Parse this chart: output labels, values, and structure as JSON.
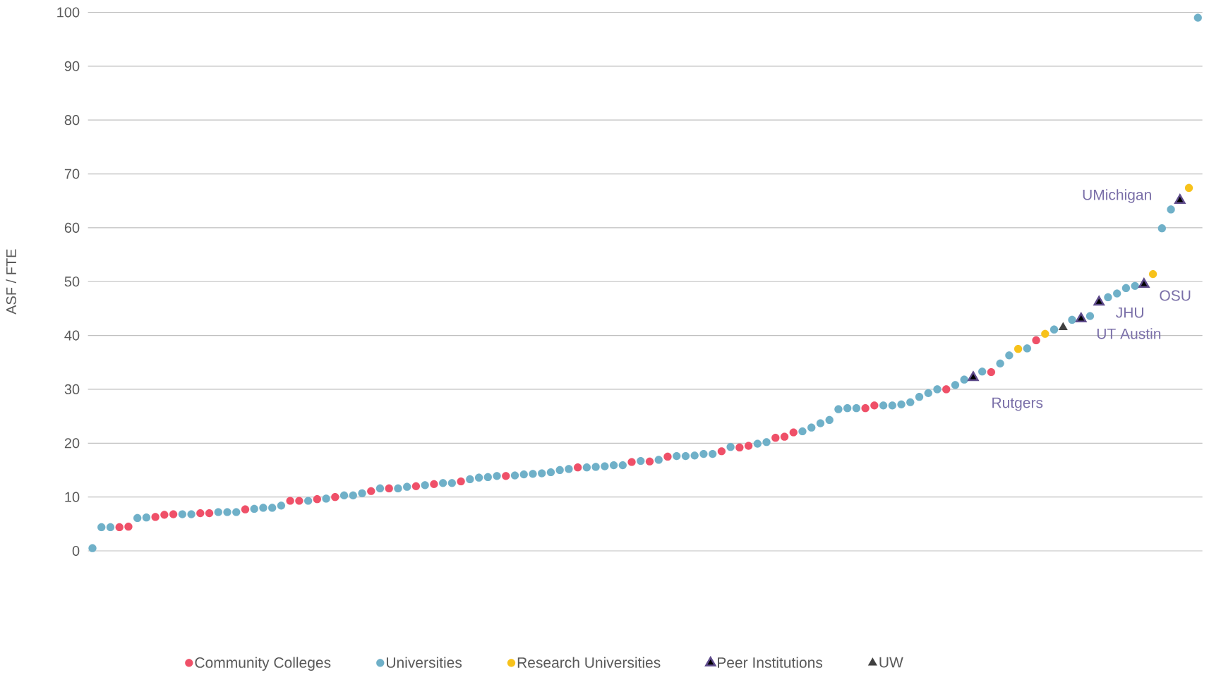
{
  "chart_data": {
    "type": "scatter",
    "ylabel": "ASF / FTE",
    "categories": [
      null,
      null,
      null,
      null,
      null,
      null,
      null,
      null,
      null,
      null,
      null,
      null,
      null,
      null,
      null,
      null,
      null,
      null,
      null,
      null,
      null,
      null,
      null,
      null,
      null,
      null,
      null,
      null,
      null,
      null,
      null,
      null,
      null,
      null,
      null,
      null,
      null,
      null,
      null,
      null,
      null,
      null,
      null,
      null,
      null,
      null,
      null,
      null,
      null,
      null,
      null,
      null,
      null,
      null,
      null,
      null,
      null,
      null,
      null,
      null,
      null,
      null,
      null,
      null,
      null,
      null,
      null,
      null,
      null,
      null,
      null,
      null,
      null,
      null,
      null,
      null,
      null,
      null,
      null,
      null,
      null,
      null,
      null,
      null,
      null,
      null,
      null,
      null,
      null,
      null,
      null,
      null,
      null,
      null,
      null,
      null,
      null,
      null,
      null,
      null,
      null,
      null,
      null,
      null,
      null,
      null,
      null,
      null,
      null,
      null,
      null,
      null,
      null,
      null,
      null,
      null,
      null,
      null,
      null,
      null,
      null,
      null,
      null,
      null
    ],
    "series": [
      {
        "name": "Community Colleges",
        "color": "#ef5068",
        "marker": "circle",
        "values": [
          null,
          null,
          null,
          4.4,
          4.5,
          null,
          null,
          6.3,
          6.7,
          6.8,
          null,
          null,
          7.0,
          7.0,
          null,
          null,
          null,
          7.7,
          null,
          null,
          null,
          null,
          9.3,
          9.3,
          null,
          9.6,
          null,
          10.0,
          null,
          null,
          null,
          11.1,
          null,
          11.6,
          null,
          null,
          12.0,
          null,
          12.4,
          null,
          null,
          12.9,
          null,
          null,
          null,
          null,
          13.9,
          null,
          null,
          null,
          null,
          null,
          null,
          null,
          15.5,
          null,
          null,
          null,
          null,
          null,
          16.5,
          null,
          16.6,
          null,
          17.5,
          null,
          null,
          null,
          null,
          null,
          18.5,
          null,
          19.2,
          19.5,
          null,
          null,
          21.0,
          21.2,
          22.0,
          null,
          null,
          null,
          null,
          null,
          null,
          null,
          26.5,
          27.0,
          null,
          null,
          null,
          null,
          null,
          null,
          null,
          30.0,
          null,
          null,
          null,
          null,
          33.2,
          null,
          null,
          null,
          null,
          39.1,
          null,
          null,
          null,
          null,
          null,
          null,
          null,
          null,
          null,
          null,
          null,
          null,
          null,
          null,
          null,
          null,
          null,
          null
        ]
      },
      {
        "name": "Universities",
        "color": "#6fb0c8",
        "marker": "circle",
        "values": [
          0.5,
          4.4,
          4.4,
          null,
          null,
          6.1,
          6.2,
          null,
          null,
          null,
          6.8,
          6.8,
          null,
          null,
          7.2,
          7.2,
          7.2,
          null,
          7.8,
          8.0,
          8.0,
          8.4,
          null,
          null,
          9.3,
          null,
          9.7,
          null,
          10.3,
          10.3,
          10.7,
          null,
          11.6,
          null,
          11.6,
          11.9,
          null,
          12.2,
          null,
          12.6,
          12.6,
          null,
          13.3,
          13.6,
          13.7,
          13.9,
          null,
          14.0,
          14.2,
          14.3,
          14.4,
          14.6,
          15.0,
          15.2,
          null,
          15.5,
          15.6,
          15.7,
          15.9,
          15.9,
          null,
          16.7,
          null,
          16.9,
          null,
          17.6,
          17.6,
          17.7,
          18.0,
          18.0,
          null,
          19.3,
          null,
          null,
          19.9,
          20.2,
          null,
          null,
          null,
          22.2,
          22.9,
          23.7,
          24.3,
          26.3,
          26.5,
          26.5,
          null,
          null,
          27.0,
          27.0,
          27.2,
          27.6,
          28.6,
          29.3,
          30.0,
          null,
          30.8,
          31.8,
          null,
          33.3,
          null,
          34.8,
          36.3,
          null,
          37.6,
          null,
          null,
          41.1,
          null,
          42.9,
          null,
          43.6,
          null,
          47.1,
          47.8,
          48.8,
          49.2,
          null,
          null,
          59.9,
          63.4,
          null,
          null,
          99.0
        ]
      },
      {
        "name": "Research Universities",
        "color": "#f7c21b",
        "marker": "circle",
        "values": [
          null,
          null,
          null,
          null,
          null,
          null,
          null,
          null,
          null,
          null,
          null,
          null,
          null,
          null,
          null,
          null,
          null,
          null,
          null,
          null,
          null,
          null,
          null,
          null,
          null,
          null,
          null,
          null,
          null,
          null,
          null,
          null,
          null,
          null,
          null,
          null,
          null,
          null,
          null,
          null,
          null,
          null,
          null,
          null,
          null,
          null,
          null,
          null,
          null,
          null,
          null,
          null,
          null,
          null,
          null,
          null,
          null,
          null,
          null,
          null,
          null,
          null,
          null,
          null,
          null,
          null,
          null,
          null,
          null,
          null,
          null,
          null,
          null,
          null,
          null,
          null,
          null,
          null,
          null,
          null,
          null,
          null,
          null,
          null,
          null,
          null,
          null,
          null,
          null,
          null,
          null,
          null,
          null,
          null,
          null,
          null,
          null,
          null,
          null,
          null,
          null,
          null,
          null,
          37.5,
          null,
          null,
          40.3,
          null,
          null,
          null,
          null,
          null,
          null,
          null,
          null,
          null,
          null,
          null,
          51.4,
          null,
          null,
          null,
          67.4,
          null
        ]
      },
      {
        "name": "Peer Institutions",
        "color": "#5e4b8b",
        "marker": "triangle",
        "values": [
          null,
          null,
          null,
          null,
          null,
          null,
          null,
          null,
          null,
          null,
          null,
          null,
          null,
          null,
          null,
          null,
          null,
          null,
          null,
          null,
          null,
          null,
          null,
          null,
          null,
          null,
          null,
          null,
          null,
          null,
          null,
          null,
          null,
          null,
          null,
          null,
          null,
          null,
          null,
          null,
          null,
          null,
          null,
          null,
          null,
          null,
          null,
          null,
          null,
          null,
          null,
          null,
          null,
          null,
          null,
          null,
          null,
          null,
          null,
          null,
          null,
          null,
          null,
          null,
          null,
          null,
          null,
          null,
          null,
          null,
          null,
          null,
          null,
          null,
          null,
          null,
          null,
          null,
          null,
          null,
          null,
          null,
          null,
          null,
          null,
          null,
          null,
          null,
          null,
          null,
          null,
          null,
          null,
          null,
          null,
          null,
          null,
          null,
          32.2,
          null,
          null,
          null,
          null,
          null,
          null,
          null,
          null,
          null,
          null,
          null,
          43.1,
          null,
          46.2,
          null,
          null,
          null,
          null,
          49.5,
          null,
          null,
          null,
          65.1,
          null,
          null
        ]
      },
      {
        "name": "UW",
        "color": "#404040",
        "marker": "triangle",
        "values": [
          null,
          null,
          null,
          null,
          null,
          null,
          null,
          null,
          null,
          null,
          null,
          null,
          null,
          null,
          null,
          null,
          null,
          null,
          null,
          null,
          null,
          null,
          null,
          null,
          null,
          null,
          null,
          null,
          null,
          null,
          null,
          null,
          null,
          null,
          null,
          null,
          null,
          null,
          null,
          null,
          null,
          null,
          null,
          null,
          null,
          null,
          null,
          null,
          null,
          null,
          null,
          null,
          null,
          null,
          null,
          null,
          null,
          null,
          null,
          null,
          null,
          null,
          null,
          null,
          null,
          null,
          null,
          null,
          null,
          null,
          null,
          null,
          null,
          null,
          null,
          null,
          null,
          null,
          null,
          null,
          null,
          null,
          null,
          null,
          null,
          null,
          null,
          null,
          null,
          null,
          null,
          null,
          null,
          null,
          null,
          null,
          null,
          null,
          null,
          null,
          null,
          null,
          null,
          null,
          null,
          null,
          null,
          null,
          41.5,
          null,
          null,
          null,
          null,
          null,
          null,
          null,
          null,
          null,
          null,
          null,
          null,
          null,
          null,
          null
        ]
      }
    ],
    "annotations": [
      "Rutgers",
      "UT Austin",
      "JHU",
      "OSU",
      "UMichigan"
    ],
    "ylim": [
      0,
      100
    ],
    "yticks": [
      0,
      10,
      20,
      30,
      40,
      50,
      60,
      70,
      80,
      90,
      100
    ],
    "grid": "y",
    "legend": "bottom",
    "tick_labels": "y"
  }
}
